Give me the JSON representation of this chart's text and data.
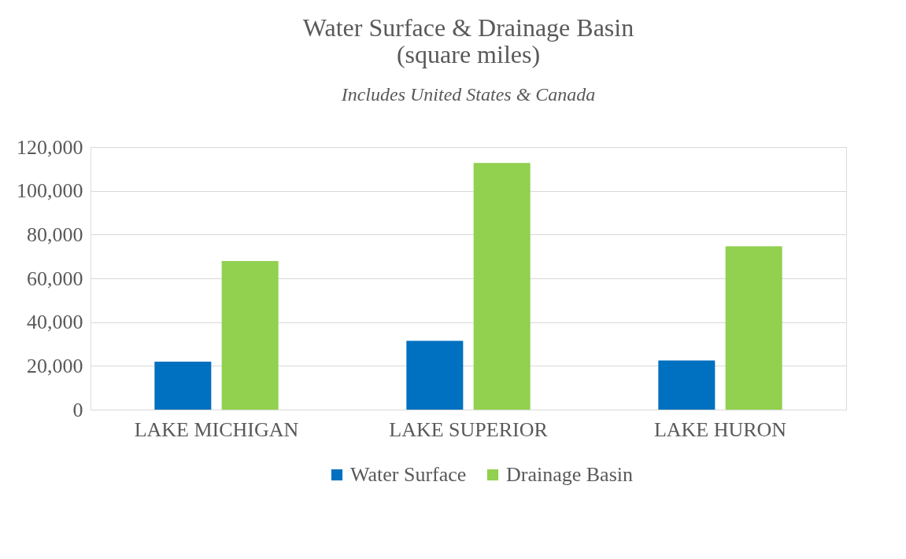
{
  "chart_data": {
    "type": "bar",
    "title": "Water Surface & Drainage Basin\n(square miles)",
    "subtitle": "Includes United States & Canada",
    "categories": [
      "LAKE MICHIGAN",
      "LAKE SUPERIOR",
      "LAKE HURON"
    ],
    "series": [
      {
        "name": "Water Surface",
        "color": "#0070c0",
        "values": [
          21900,
          31400,
          22500
        ]
      },
      {
        "name": "Drainage Basin",
        "color": "#92d050",
        "values": [
          67900,
          112700,
          74600
        ]
      }
    ],
    "ylim": [
      0,
      120000
    ],
    "yticks": [
      0,
      {
        "value": 20000,
        "label": "20,000"
      },
      {
        "value": 40000,
        "label": "40,000"
      },
      {
        "value": 60000,
        "label": "60,000"
      },
      {
        "value": 80000,
        "label": "80,000"
      },
      {
        "value": 100000,
        "label": "100,000"
      },
      {
        "value": 120000,
        "label": "120,000"
      }
    ],
    "grid": "y",
    "legend": "bottom"
  }
}
